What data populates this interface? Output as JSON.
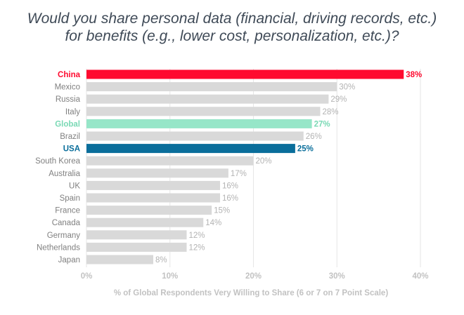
{
  "chart_data": {
    "type": "bar",
    "orientation": "horizontal",
    "title_lines": [
      "Would you share personal data (financial, driving records, etc.)",
      "for benefits (e.g., lower cost, personalization, etc.)?"
    ],
    "categories": [
      "China",
      "Mexico",
      "Russia",
      "Italy",
      "Global",
      "Brazil",
      "USA",
      "South Korea",
      "Australia",
      "UK",
      "Spain",
      "France",
      "Canada",
      "Germany",
      "Netherlands",
      "Japan"
    ],
    "values": [
      38,
      30,
      29,
      28,
      27,
      26,
      25,
      20,
      17,
      16,
      16,
      15,
      14,
      12,
      12,
      8
    ],
    "value_labels": [
      "38%",
      "30%",
      "29%",
      "28%",
      "27%",
      "26%",
      "25%",
      "20%",
      "17%",
      "16%",
      "16%",
      "15%",
      "14%",
      "12%",
      "12%",
      "8%"
    ],
    "highlights": {
      "China": "#ff0a2f",
      "Global": "#96e6c8",
      "USA": "#0a6e9b"
    },
    "highlight_label_colors": {
      "China": "#ff0a2f",
      "Global": "#7ad9b5",
      "USA": "#0a6e9b"
    },
    "default_bar_color": "#d9d9d9",
    "default_label_color": "#808080",
    "default_value_color": "#b3b3b3",
    "xlim": [
      0,
      40
    ],
    "xticks": [
      0,
      10,
      20,
      30,
      40
    ],
    "xtick_labels": [
      "0%",
      "10%",
      "20%",
      "30%",
      "40%"
    ],
    "xlabel": "% of Global Respondents Very Willing to Share (6 or 7 on 7 Point Scale)",
    "grid": true
  }
}
